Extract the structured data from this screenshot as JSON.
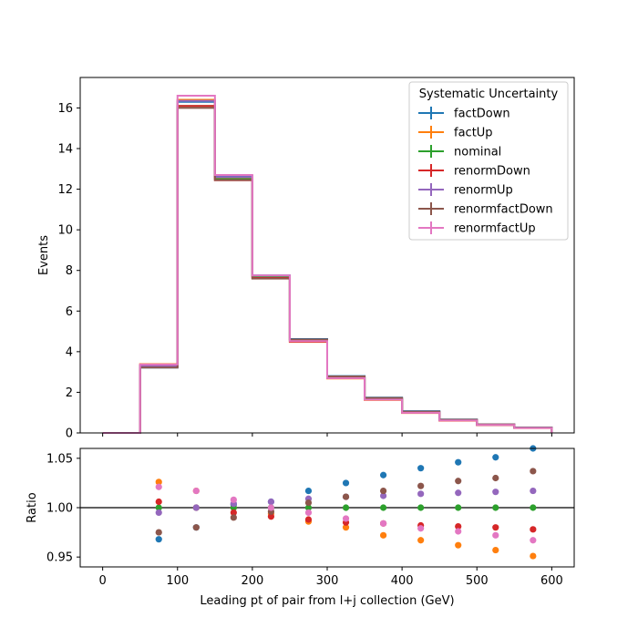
{
  "chart_data": [
    {
      "type": "line",
      "subtype": "step-histogram",
      "ylabel": "Events",
      "xlim": [
        -30,
        630
      ],
      "ylim": [
        0,
        17.5
      ],
      "x_ticks": [
        0,
        100,
        200,
        300,
        400,
        500,
        600
      ],
      "y_ticks": [
        0,
        2,
        4,
        6,
        8,
        10,
        12,
        14,
        16
      ],
      "y_tick_labels": [
        "0",
        "2",
        "4",
        "6",
        "8",
        "10",
        "12",
        "14",
        "16"
      ],
      "bin_edges": [
        0,
        50,
        100,
        150,
        200,
        250,
        300,
        350,
        400,
        450,
        500,
        550,
        600
      ],
      "legend": {
        "title": "Systematic Uncertainty",
        "placement": "top-right"
      },
      "series": [
        {
          "name": "factDown",
          "color": "#1f77b4",
          "values": [
            0,
            3.22,
            16.3,
            12.65,
            7.75,
            4.62,
            2.8,
            1.74,
            1.07,
            0.66,
            0.42,
            0.27
          ]
        },
        {
          "name": "factUp",
          "color": "#ff7f0e",
          "values": [
            0,
            3.39,
            16.4,
            12.55,
            7.65,
            4.48,
            2.68,
            1.62,
            0.98,
            0.6,
            0.38,
            0.24
          ]
        },
        {
          "name": "nominal",
          "color": "#2ca02c",
          "values": [
            0,
            3.3,
            16.1,
            12.5,
            7.7,
            4.55,
            2.74,
            1.68,
            1.02,
            0.63,
            0.4,
            0.25
          ]
        },
        {
          "name": "renormDown",
          "color": "#d62728",
          "values": [
            0,
            3.32,
            16.1,
            12.44,
            7.63,
            4.49,
            2.7,
            1.65,
            1.0,
            0.62,
            0.39,
            0.245
          ]
        },
        {
          "name": "renormUp",
          "color": "#9467bd",
          "values": [
            0,
            3.28,
            16.35,
            12.6,
            7.75,
            4.58,
            2.76,
            1.7,
            1.04,
            0.64,
            0.41,
            0.255
          ]
        },
        {
          "name": "renormfactDown",
          "color": "#8c564b",
          "values": [
            0,
            3.22,
            16.0,
            12.45,
            7.6,
            4.6,
            2.78,
            1.72,
            1.05,
            0.65,
            0.42,
            0.26
          ]
        },
        {
          "name": "renormfactUp",
          "color": "#e377c2",
          "values": [
            0,
            3.37,
            16.6,
            12.7,
            7.75,
            4.52,
            2.7,
            1.64,
            0.99,
            0.61,
            0.39,
            0.24
          ]
        }
      ]
    },
    {
      "type": "scatter",
      "xlabel": "Leading pt of pair from l+j collection (GeV)",
      "ylabel": "Ratio",
      "xlim": [
        -30,
        630
      ],
      "ylim": [
        0.94,
        1.06
      ],
      "x_ticks": [
        0,
        100,
        200,
        300,
        400,
        500,
        600
      ],
      "x_tick_labels": [
        "0",
        "100",
        "200",
        "300",
        "400",
        "500",
        "600"
      ],
      "y_ticks": [
        0.95,
        1.0,
        1.05
      ],
      "y_tick_labels": [
        "0.95",
        "1.00",
        "1.05"
      ],
      "reference_line": 1.0,
      "x": [
        75,
        125,
        175,
        225,
        275,
        325,
        375,
        425,
        475,
        525,
        575
      ],
      "series": [
        {
          "name": "factDown",
          "color": "#1f77b4",
          "values": [
            0.968,
            0.98,
            1.003,
            1.006,
            1.017,
            1.025,
            1.033,
            1.04,
            1.046,
            1.051,
            1.06
          ]
        },
        {
          "name": "factUp",
          "color": "#ff7f0e",
          "values": [
            1.026,
            1.017,
            1.0,
            0.994,
            0.986,
            0.98,
            0.972,
            0.967,
            0.962,
            0.957,
            0.951
          ]
        },
        {
          "name": "nominal",
          "color": "#2ca02c",
          "values": [
            1.0,
            1.0,
            1.0,
            1.0,
            1.0,
            1.0,
            1.0,
            1.0,
            1.0,
            1.0,
            1.0
          ]
        },
        {
          "name": "renormDown",
          "color": "#d62728",
          "values": [
            1.006,
            1.0,
            0.995,
            0.991,
            0.988,
            0.985,
            0.984,
            0.982,
            0.981,
            0.98,
            0.978
          ]
        },
        {
          "name": "renormUp",
          "color": "#9467bd",
          "values": [
            0.995,
            1.0,
            1.004,
            1.006,
            1.009,
            1.011,
            1.012,
            1.014,
            1.015,
            1.016,
            1.017
          ]
        },
        {
          "name": "renormfactDown",
          "color": "#8c564b",
          "values": [
            0.975,
            0.98,
            0.99,
            0.996,
            1.005,
            1.011,
            1.017,
            1.022,
            1.027,
            1.03,
            1.037
          ]
        },
        {
          "name": "renormfactUp",
          "color": "#e377c2",
          "values": [
            1.021,
            1.017,
            1.008,
            1.0,
            0.995,
            0.989,
            0.984,
            0.979,
            0.976,
            0.972,
            0.967
          ]
        }
      ]
    }
  ]
}
